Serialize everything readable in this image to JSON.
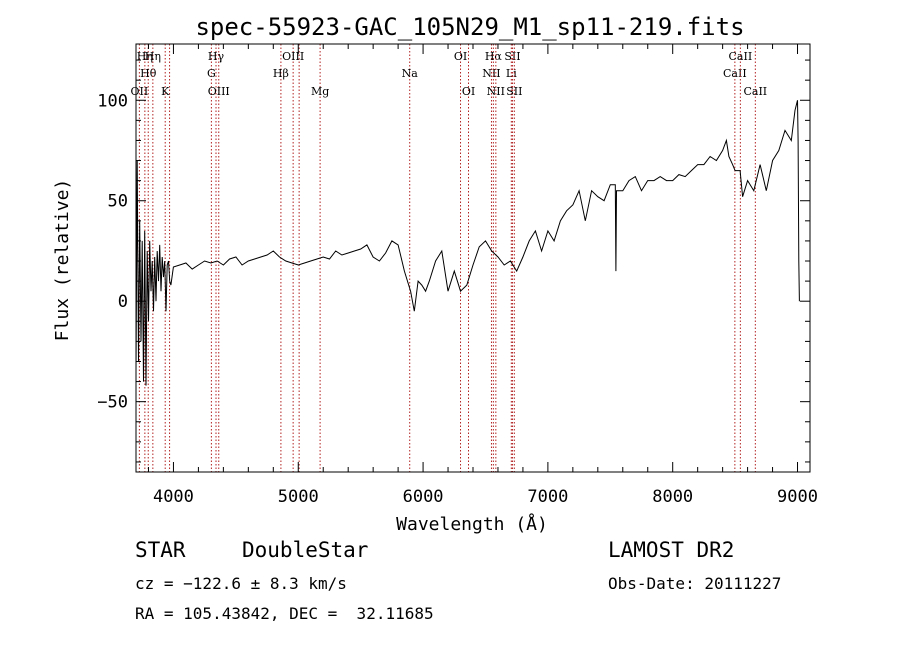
{
  "chart_data": {
    "type": "line",
    "title": "spec-55923-GAC_105N29_M1_sp11-219.fits",
    "xlabel": "Wavelength (Å)",
    "ylabel": "Flux (relative)",
    "xlim": [
      3700,
      9100
    ],
    "ylim": [
      -85,
      128
    ],
    "x_ticks": [
      4000,
      5000,
      6000,
      7000,
      8000,
      9000
    ],
    "y_ticks": [
      -50,
      0,
      50,
      100
    ],
    "grid": false,
    "series": [
      {
        "values_x": [
          3700,
          3710,
          3720,
          3730,
          3740,
          3750,
          3760,
          3770,
          3780,
          3790,
          3800,
          3810,
          3820,
          3830,
          3840,
          3850,
          3860,
          3870,
          3880,
          3890,
          3900,
          3910,
          3920,
          3930,
          3940,
          3950,
          3960,
          3970,
          3980,
          4000,
          4050,
          4100,
          4150,
          4200,
          4250,
          4300,
          4350,
          4400,
          4450,
          4500,
          4550,
          4600,
          4650,
          4700,
          4750,
          4800,
          4850,
          4900,
          4950,
          5000,
          5050,
          5100,
          5150,
          5200,
          5250,
          5300,
          5350,
          5400,
          5450,
          5500,
          5550,
          5600,
          5650,
          5700,
          5750,
          5800,
          5850,
          5900,
          5930,
          5960,
          5990,
          6020,
          6050,
          6100,
          6150,
          6200,
          6250,
          6300,
          6350,
          6400,
          6450,
          6500,
          6550,
          6600,
          6650,
          6700,
          6750,
          6800,
          6850,
          6900,
          6950,
          7000,
          7050,
          7100,
          7150,
          7200,
          7250,
          7300,
          7350,
          7400,
          7450,
          7500,
          7540,
          7545,
          7550,
          7600,
          7650,
          7700,
          7750,
          7800,
          7850,
          7900,
          7950,
          8000,
          8050,
          8100,
          8150,
          8200,
          8250,
          8300,
          8350,
          8400,
          8430,
          8450,
          8480,
          8500,
          8540,
          8560,
          8600,
          8650,
          8700,
          8750,
          8800,
          8850,
          8900,
          8950,
          8980,
          9000,
          9005,
          9010,
          9015
        ],
        "values_y": [
          -35,
          70,
          -30,
          40,
          -20,
          30,
          -40,
          35,
          -42,
          25,
          -10,
          30,
          5,
          20,
          -5,
          22,
          0,
          25,
          10,
          28,
          5,
          22,
          12,
          20,
          -5,
          18,
          20,
          10,
          8,
          17,
          18,
          19,
          16,
          18,
          20,
          19,
          20,
          18,
          21,
          22,
          18,
          20,
          21,
          22,
          23,
          25,
          22,
          20,
          19,
          18,
          19,
          20,
          21,
          22,
          21,
          25,
          23,
          24,
          25,
          26,
          28,
          22,
          20,
          24,
          30,
          28,
          15,
          5,
          -5,
          10,
          8,
          5,
          10,
          20,
          25,
          5,
          15,
          5,
          8,
          18,
          27,
          30,
          25,
          22,
          18,
          20,
          15,
          22,
          30,
          35,
          25,
          35,
          30,
          40,
          45,
          48,
          55,
          40,
          55,
          52,
          50,
          58,
          58,
          15,
          55,
          55,
          60,
          62,
          55,
          60,
          60,
          62,
          60,
          60,
          63,
          62,
          65,
          68,
          68,
          72,
          70,
          75,
          80,
          72,
          68,
          65,
          65,
          52,
          60,
          55,
          68,
          55,
          70,
          75,
          85,
          80,
          95,
          100,
          80,
          20,
          0
        ]
      }
    ],
    "lines": [
      {
        "x": 3727,
        "label": "OII",
        "row": 3
      },
      {
        "x": 3771,
        "label": "Hη",
        "row": 1
      },
      {
        "x": 3798,
        "label": "Hθ",
        "row": 2
      },
      {
        "x": 3835,
        "label": "Hη",
        "row": 1
      },
      {
        "x": 3934,
        "label": "K",
        "row": 3
      },
      {
        "x": 3969,
        "label": "",
        "row": 0
      },
      {
        "x": 4304,
        "label": "G",
        "row": 2
      },
      {
        "x": 4341,
        "label": "Hγ",
        "row": 1
      },
      {
        "x": 4363,
        "label": "OIII",
        "row": 3
      },
      {
        "x": 4861,
        "label": "Hβ",
        "row": 2
      },
      {
        "x": 4959,
        "label": "OIII",
        "row": 1
      },
      {
        "x": 5007,
        "label": "",
        "row": 0
      },
      {
        "x": 5175,
        "label": "Mg",
        "row": 3
      },
      {
        "x": 5893,
        "label": "Na",
        "row": 2
      },
      {
        "x": 6300,
        "label": "OI",
        "row": 1
      },
      {
        "x": 6364,
        "label": "OI",
        "row": 3
      },
      {
        "x": 6548,
        "label": "NII",
        "row": 2
      },
      {
        "x": 6563,
        "label": "Hα",
        "row": 1
      },
      {
        "x": 6583,
        "label": "NII",
        "row": 3
      },
      {
        "x": 6707,
        "label": "Li",
        "row": 2
      },
      {
        "x": 6716,
        "label": "SII",
        "row": 1
      },
      {
        "x": 6731,
        "label": "SII",
        "row": 3
      },
      {
        "x": 8498,
        "label": "CaII",
        "row": 2
      },
      {
        "x": 8542,
        "label": "CaII",
        "row": 1
      },
      {
        "x": 8662,
        "label": "CaII",
        "row": 3
      }
    ],
    "line_color": "#b22222"
  },
  "info": {
    "class": "STAR",
    "subclass": "DoubleStar",
    "survey": "LAMOST DR2",
    "cz": "cz = −122.6 ± 8.3 km/s",
    "obs_date": "Obs-Date: 20111227",
    "coords": "RA = 105.43842, DEC =  32.11685"
  }
}
